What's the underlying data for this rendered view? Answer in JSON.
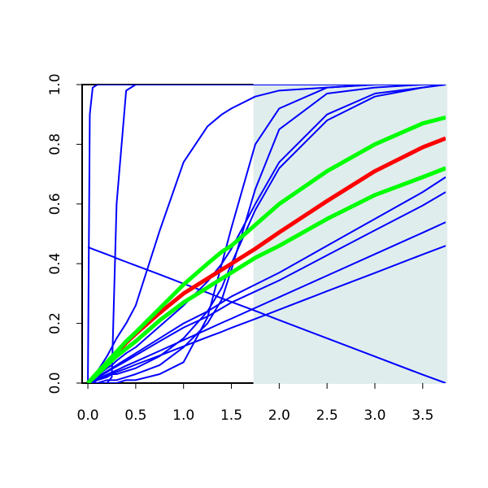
{
  "chart_data": {
    "type": "line",
    "xlim": [
      -0.06,
      3.74
    ],
    "ylim": [
      0,
      1
    ],
    "xticks": [
      {
        "value": 0,
        "label": "0.0"
      },
      0.5,
      {
        "value": 1,
        "label": "1.0"
      },
      1.5,
      {
        "value": 2,
        "label": "2.0"
      },
      2.5,
      {
        "value": 3,
        "label": "3.0"
      },
      3.5
    ],
    "yticks": [
      {
        "value": 0,
        "label": "0.0"
      },
      0.2,
      0.4,
      0.6,
      0.8,
      {
        "value": 1,
        "label": "1.0"
      }
    ],
    "shaded_x": [
      1.73,
      3.74
    ],
    "shade_color": "#e0eded",
    "x": [
      0,
      0.02,
      0.05,
      0.1,
      0.2,
      0.25,
      0.3,
      0.4,
      0.5,
      0.75,
      1,
      1.25,
      1.4,
      1.5,
      1.75,
      2,
      2.5,
      3,
      3.5,
      3.74
    ],
    "series": [
      {
        "color": "#0000ff",
        "line_width": 2,
        "values": [
          0,
          0.9,
          0.99,
          1,
          1,
          1,
          1,
          1,
          1,
          1,
          1,
          1,
          1,
          1,
          1,
          1,
          1,
          1,
          1,
          1
        ]
      },
      {
        "color": "#0000ff",
        "line_width": 2,
        "values": [
          0,
          0,
          0,
          0,
          0,
          0.02,
          0.6,
          0.98,
          1,
          1,
          1,
          1,
          1,
          1,
          1,
          1,
          1,
          1,
          1,
          1
        ]
      },
      {
        "color": "#0000ff",
        "line_width": 2,
        "values": [
          0,
          0.01,
          0.02,
          0.04,
          0.09,
          0.12,
          0.15,
          0.2,
          0.26,
          0.51,
          0.74,
          0.86,
          0.9,
          0.92,
          0.96,
          0.98,
          0.99,
          1,
          1,
          1
        ]
      },
      {
        "color": "#0000ff",
        "line_width": 2,
        "values": [
          0.455,
          0.453,
          0.449,
          0.443,
          0.431,
          0.425,
          0.418,
          0.406,
          0.394,
          0.364,
          0.333,
          0.303,
          0.284,
          0.272,
          0.242,
          0.211,
          0.15,
          0.089,
          0.028,
          0
        ]
      },
      {
        "color": "#0000ff",
        "line_width": 2,
        "values": [
          0,
          0,
          0,
          0,
          0,
          0,
          0,
          0.01,
          0.01,
          0.03,
          0.07,
          0.22,
          0.4,
          0.52,
          0.8,
          0.92,
          0.99,
          1,
          1,
          1
        ]
      },
      {
        "color": "#0000ff",
        "line_width": 2,
        "values": [
          0,
          0,
          0,
          0,
          0.01,
          0.01,
          0.01,
          0.02,
          0.03,
          0.06,
          0.12,
          0.2,
          0.28,
          0.38,
          0.65,
          0.85,
          0.97,
          0.99,
          1,
          1
        ]
      },
      {
        "color": "#0000ff",
        "line_width": 2,
        "values": [
          0,
          0,
          0,
          0.01,
          0.02,
          0.03,
          0.03,
          0.04,
          0.05,
          0.09,
          0.15,
          0.24,
          0.32,
          0.4,
          0.58,
          0.72,
          0.88,
          0.96,
          0.99,
          1
        ]
      },
      {
        "color": "#0000ff",
        "line_width": 2,
        "values": [
          0,
          0.005,
          0.012,
          0.025,
          0.05,
          0.06,
          0.075,
          0.1,
          0.12,
          0.19,
          0.26,
          0.34,
          0.4,
          0.45,
          0.6,
          0.74,
          0.9,
          0.97,
          0.99,
          1
        ]
      },
      {
        "color": "#0000ff",
        "line_width": 2,
        "values": [
          0,
          0.004,
          0.01,
          0.02,
          0.04,
          0.05,
          0.06,
          0.08,
          0.1,
          0.15,
          0.2,
          0.24,
          0.27,
          0.29,
          0.33,
          0.37,
          0.46,
          0.55,
          0.64,
          0.69
        ]
      },
      {
        "color": "#0000ff",
        "line_width": 2,
        "values": [
          0,
          0.004,
          0.009,
          0.019,
          0.037,
          0.047,
          0.056,
          0.074,
          0.093,
          0.14,
          0.186,
          0.223,
          0.251,
          0.27,
          0.307,
          0.344,
          0.428,
          0.512,
          0.595,
          0.64
        ]
      },
      {
        "color": "#0000ff",
        "line_width": 2,
        "values": [
          0,
          0.003,
          0.007,
          0.014,
          0.029,
          0.036,
          0.043,
          0.058,
          0.072,
          0.108,
          0.144,
          0.18,
          0.202,
          0.216,
          0.252,
          0.288,
          0.36,
          0.432,
          0.504,
          0.539
        ]
      },
      {
        "color": "#0000ff",
        "line_width": 2,
        "values": [
          0,
          0.002,
          0.006,
          0.012,
          0.025,
          0.031,
          0.037,
          0.049,
          0.062,
          0.092,
          0.123,
          0.154,
          0.172,
          0.185,
          0.215,
          0.246,
          0.308,
          0.369,
          0.431,
          0.46
        ]
      },
      {
        "color": "#ff0000",
        "line_width": 5,
        "values": [
          0,
          0.007,
          0.017,
          0.034,
          0.068,
          0.085,
          0.1,
          0.135,
          0.165,
          0.235,
          0.3,
          0.35,
          0.38,
          0.4,
          0.45,
          0.505,
          0.61,
          0.71,
          0.79,
          0.82
        ]
      },
      {
        "color": "#00ff00",
        "line_width": 5,
        "values": [
          0,
          0.007,
          0.018,
          0.036,
          0.07,
          0.088,
          0.105,
          0.14,
          0.17,
          0.25,
          0.33,
          0.4,
          0.44,
          0.46,
          0.53,
          0.6,
          0.71,
          0.8,
          0.87,
          0.89
        ]
      },
      {
        "color": "#00ff00",
        "line_width": 5,
        "values": [
          0,
          0.006,
          0.015,
          0.03,
          0.06,
          0.075,
          0.09,
          0.115,
          0.14,
          0.21,
          0.27,
          0.32,
          0.35,
          0.37,
          0.42,
          0.46,
          0.55,
          0.63,
          0.69,
          0.72
        ]
      }
    ]
  }
}
